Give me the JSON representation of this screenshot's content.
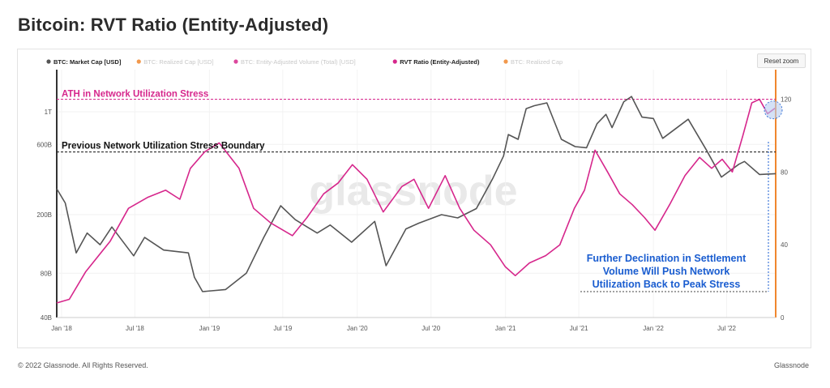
{
  "page": {
    "title": "Bitcoin: RVT Ratio (Entity-Adjusted)",
    "reset_zoom": "Reset zoom",
    "copyright": "© 2022 Glassnode. All Rights Reserved.",
    "brand": "Glassnode",
    "watermark": "glassnode"
  },
  "colors": {
    "market_cap": "#555555",
    "rvt": "#d6278c",
    "realized_cap": "#f0872e",
    "disabled_legend": "#c8c8c8",
    "annotation_blue": "#1a5dd0",
    "highlight_circle": "#b8cdf0"
  },
  "chart_data": {
    "type": "line",
    "legend": [
      {
        "name": "BTC: Market Cap [USD]",
        "color": "#555555",
        "enabled": true
      },
      {
        "name": "BTC: Realized Cap [USD]",
        "color": "#f0872e",
        "enabled": false
      },
      {
        "name": "BTC: Entity-Adjusted Volume (Total) [USD]",
        "color": "#d6278c",
        "enabled": false
      },
      {
        "name": "RVT Ratio (Entity-Adjusted)",
        "color": "#d6278c",
        "enabled": true
      },
      {
        "name": "BTC: Realized Cap",
        "color": "#f0872e",
        "enabled": false
      }
    ],
    "legend_position": "top-left",
    "x_ticks": [
      "Jan '18",
      "Jul '18",
      "Jan '19",
      "Jul '19",
      "Jan '20",
      "Jul '20",
      "Jan '21",
      "Jul '21",
      "Jan '22",
      "Jul '22"
    ],
    "y_left_ticks": [
      "40B",
      "80B",
      "200B",
      "600B",
      "1T"
    ],
    "y_left_scale": "log",
    "y_right_ticks": [
      "0",
      "40",
      "80",
      "120"
    ],
    "y_right_range": [
      0,
      130
    ],
    "x_range": [
      "2017-12-20",
      "2022-10-30"
    ],
    "series": [
      {
        "name": "BTC: Market Cap [USD]",
        "axis": "left",
        "unit": "USD (billions)",
        "dates": [
          "2017-12-20",
          "2018-01-10",
          "2018-02-06",
          "2018-03-05",
          "2018-04-06",
          "2018-05-05",
          "2018-06-28",
          "2018-07-25",
          "2018-09-10",
          "2018-11-10",
          "2018-11-25",
          "2018-12-15",
          "2019-02-10",
          "2019-04-02",
          "2019-05-15",
          "2019-06-26",
          "2019-08-01",
          "2019-09-24",
          "2019-10-26",
          "2019-12-18",
          "2020-02-13",
          "2020-03-12",
          "2020-04-30",
          "2020-06-01",
          "2020-07-27",
          "2020-09-05",
          "2020-10-21",
          "2020-11-30",
          "2020-12-27",
          "2021-01-08",
          "2021-02-01",
          "2021-02-21",
          "2021-03-13",
          "2021-04-13",
          "2021-05-19",
          "2021-06-22",
          "2021-07-20",
          "2021-08-15",
          "2021-09-06",
          "2021-09-21",
          "2021-10-20",
          "2021-11-08",
          "2021-12-04",
          "2022-01-01",
          "2022-01-24",
          "2022-03-28",
          "2022-05-12",
          "2022-06-18",
          "2022-07-31",
          "2022-08-14",
          "2022-09-20",
          "2022-10-30"
        ],
        "values": [
          300,
          240,
          110,
          150,
          125,
          165,
          105,
          140,
          115,
          110,
          75,
          60,
          62,
          80,
          140,
          230,
          185,
          150,
          170,
          130,
          180,
          90,
          160,
          175,
          200,
          190,
          220,
          350,
          500,
          700,
          650,
          1050,
          1100,
          1150,
          650,
          580,
          570,
          830,
          960,
          780,
          1170,
          1270,
          920,
          900,
          660,
          890,
          550,
          360,
          440,
          460,
          375,
          380
        ]
      },
      {
        "name": "RVT Ratio (Entity-Adjusted)",
        "axis": "right",
        "unit": "ratio",
        "dates": [
          "2017-12-20",
          "2018-01-20",
          "2018-03-01",
          "2018-05-01",
          "2018-06-15",
          "2018-08-01",
          "2018-09-15",
          "2018-10-20",
          "2018-11-15",
          "2018-12-20",
          "2019-01-25",
          "2019-03-15",
          "2019-04-20",
          "2019-06-01",
          "2019-07-25",
          "2019-08-30",
          "2019-10-10",
          "2019-11-15",
          "2019-12-20",
          "2020-01-25",
          "2020-03-05",
          "2020-04-20",
          "2020-05-20",
          "2020-06-25",
          "2020-08-05",
          "2020-09-10",
          "2020-10-15",
          "2020-11-25",
          "2020-12-31",
          "2021-01-25",
          "2021-03-01",
          "2021-04-10",
          "2021-05-15",
          "2021-06-20",
          "2021-07-15",
          "2021-08-10",
          "2021-09-10",
          "2021-10-10",
          "2021-11-10",
          "2021-12-10",
          "2022-01-05",
          "2022-02-10",
          "2022-03-20",
          "2022-04-25",
          "2022-05-25",
          "2022-06-20",
          "2022-07-15",
          "2022-08-10",
          "2022-09-01",
          "2022-09-20",
          "2022-10-10",
          "2022-10-28"
        ],
        "values": [
          8,
          10,
          25,
          42,
          60,
          66,
          70,
          65,
          82,
          91,
          96,
          82,
          60,
          52,
          45,
          55,
          68,
          74,
          84,
          76,
          58,
          72,
          76,
          60,
          78,
          60,
          48,
          40,
          28,
          23,
          30,
          34,
          40,
          60,
          70,
          92,
          80,
          68,
          62,
          55,
          48,
          62,
          78,
          88,
          82,
          87,
          80,
          100,
          118,
          120,
          112,
          115
        ]
      }
    ],
    "annotations": [
      {
        "text": "ATH in Network Utilization Stress",
        "color": "#d6278c",
        "level": 120,
        "axis": "right",
        "style": "dashed"
      },
      {
        "text": "Previous Network Utilization Stress Boundary",
        "color": "#111111",
        "level": 91,
        "axis": "right",
        "style": "dashed"
      },
      {
        "text": "Further Declination in Settlement Volume Will Push Network Utilization Back to Peak Stress",
        "lines": [
          "Further Declination in Settlement",
          "Volume Will Push Network",
          "Utilization Back to Peak Stress"
        ],
        "color": "#1a5dd0"
      }
    ]
  }
}
